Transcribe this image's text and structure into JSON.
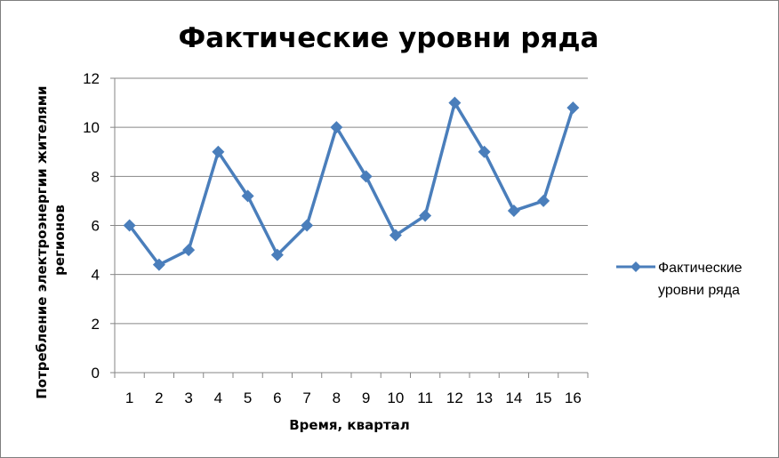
{
  "chart_data": {
    "type": "line",
    "title": "Фактические уровни ряда",
    "xlabel": "Время, квартал",
    "ylabel_lines": [
      "Потребление электроэнергии жителями",
      "регионов"
    ],
    "categories": [
      "1",
      "2",
      "3",
      "4",
      "5",
      "6",
      "7",
      "8",
      "9",
      "10",
      "11",
      "12",
      "13",
      "14",
      "15",
      "16"
    ],
    "series": [
      {
        "name": "Фактические уровни ряда",
        "legend_lines": [
          "Фактические",
          "уровни ряда"
        ],
        "color": "#4a7ebb",
        "marker": "diamond",
        "values": [
          6.0,
          4.4,
          5.0,
          9.0,
          7.2,
          4.8,
          6.0,
          10.0,
          8.0,
          5.6,
          6.4,
          11.0,
          9.0,
          6.6,
          7.0,
          10.8
        ]
      }
    ],
    "ylim": [
      0,
      12
    ],
    "yticks": [
      0,
      2,
      4,
      6,
      8,
      10,
      12
    ],
    "grid": true,
    "legend_position": "right"
  }
}
